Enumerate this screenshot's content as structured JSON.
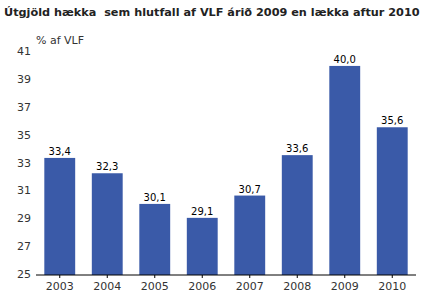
{
  "chart_data": {
    "type": "bar",
    "title": "Útgjöld hækka  sem hlutfall af VLF árið 2009 en lækka aftur 2010",
    "ylabel": "% af VLF",
    "categories": [
      "2003",
      "2004",
      "2005",
      "2006",
      "2007",
      "2008",
      "2009",
      "2010"
    ],
    "values": [
      33.4,
      32.3,
      30.1,
      29.1,
      30.7,
      33.6,
      40.0,
      35.6
    ],
    "value_labels": [
      "33,4",
      "32,3",
      "30,1",
      "29,1",
      "30,7",
      "33,6",
      "40,0",
      "35,6"
    ],
    "data_labels": true,
    "color": "#3a5aa8",
    "ylim": [
      25,
      41
    ],
    "yticks": [
      25,
      27,
      29,
      31,
      33,
      35,
      37,
      39,
      41
    ],
    "grid": false
  }
}
